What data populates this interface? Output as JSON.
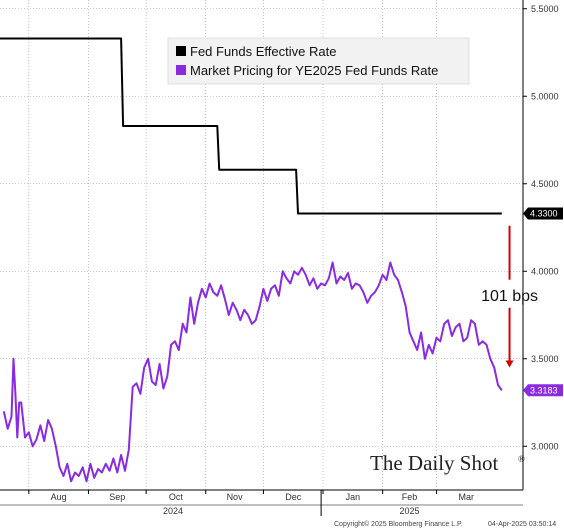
{
  "chart_data": {
    "type": "line",
    "y_axis_side": "right",
    "ylim": [
      2.75,
      5.55
    ],
    "y_ticks": [
      "5.5000",
      "5.0000",
      "4.5000",
      "4.0000",
      "3.5000",
      "3.0000"
    ],
    "y_tick_values": [
      5.5,
      5.0,
      4.5,
      4.0,
      3.5,
      3.0
    ],
    "grid": true,
    "grid_style": "dotted",
    "x_range": [
      "2024-07-17",
      "2025-04-15"
    ],
    "month_ticks": [
      {
        "label": "Aug",
        "date": "2024-08-01"
      },
      {
        "label": "Sep",
        "date": "2024-09-01"
      },
      {
        "label": "Oct",
        "date": "2024-10-01"
      },
      {
        "label": "Nov",
        "date": "2024-11-01"
      },
      {
        "label": "Dec",
        "date": "2024-12-01"
      },
      {
        "label": "Jan",
        "date": "2025-01-01"
      },
      {
        "label": "Feb",
        "date": "2025-02-01"
      },
      {
        "label": "Mar",
        "date": "2025-03-01"
      }
    ],
    "year_labels": [
      {
        "label": "2024",
        "date": "2024-10-15"
      },
      {
        "label": "2025",
        "date": "2025-02-15"
      }
    ],
    "year_separator_date": "2024-12-31",
    "series": [
      {
        "name": "Fed Funds Effective Rate",
        "color": "#000000",
        "last_value_label": "4.3300",
        "x": [
          "2024-07-17",
          "2024-09-18",
          "2024-09-19",
          "2024-11-07",
          "2024-11-08",
          "2024-12-18",
          "2024-12-19",
          "2025-04-04"
        ],
        "y": [
          5.33,
          5.33,
          4.83,
          4.83,
          4.58,
          4.58,
          4.33,
          4.33
        ]
      },
      {
        "name": "Market Pricing for YE2025 Fed Funds Rate",
        "color": "#8a2be2",
        "last_value_label": "3.3183",
        "x": [
          "2024-07-19",
          "2024-07-21",
          "2024-07-23",
          "2024-07-24",
          "2024-07-25",
          "2024-07-26",
          "2024-07-27",
          "2024-07-28",
          "2024-07-30",
          "2024-08-01",
          "2024-08-03",
          "2024-08-05",
          "2024-08-07",
          "2024-08-09",
          "2024-08-11",
          "2024-08-13",
          "2024-08-15",
          "2024-08-17",
          "2024-08-19",
          "2024-08-21",
          "2024-08-23",
          "2024-08-25",
          "2024-08-27",
          "2024-08-29",
          "2024-08-31",
          "2024-09-02",
          "2024-09-04",
          "2024-09-06",
          "2024-09-08",
          "2024-09-10",
          "2024-09-12",
          "2024-09-14",
          "2024-09-16",
          "2024-09-18",
          "2024-09-20",
          "2024-09-22",
          "2024-09-24",
          "2024-09-26",
          "2024-09-28",
          "2024-09-30",
          "2024-10-02",
          "2024-10-04",
          "2024-10-06",
          "2024-10-08",
          "2024-10-10",
          "2024-10-12",
          "2024-10-14",
          "2024-10-16",
          "2024-10-18",
          "2024-10-20",
          "2024-10-22",
          "2024-10-24",
          "2024-10-26",
          "2024-10-28",
          "2024-10-30",
          "2024-11-01",
          "2024-11-03",
          "2024-11-05",
          "2024-11-07",
          "2024-11-09",
          "2024-11-11",
          "2024-11-13",
          "2024-11-15",
          "2024-11-17",
          "2024-11-19",
          "2024-11-21",
          "2024-11-23",
          "2024-11-25",
          "2024-11-27",
          "2024-11-29",
          "2024-12-01",
          "2024-12-03",
          "2024-12-05",
          "2024-12-07",
          "2024-12-09",
          "2024-12-11",
          "2024-12-13",
          "2024-12-15",
          "2024-12-17",
          "2024-12-19",
          "2024-12-21",
          "2024-12-23",
          "2024-12-25",
          "2024-12-27",
          "2024-12-29",
          "2024-12-31",
          "2025-01-02",
          "2025-01-04",
          "2025-01-06",
          "2025-01-08",
          "2025-01-10",
          "2025-01-12",
          "2025-01-14",
          "2025-01-16",
          "2025-01-18",
          "2025-01-20",
          "2025-01-22",
          "2025-01-24",
          "2025-01-26",
          "2025-01-28",
          "2025-01-30",
          "2025-02-01",
          "2025-02-03",
          "2025-02-05",
          "2025-02-07",
          "2025-02-09",
          "2025-02-11",
          "2025-02-13",
          "2025-02-15",
          "2025-02-17",
          "2025-02-19",
          "2025-02-21",
          "2025-02-23",
          "2025-02-25",
          "2025-02-27",
          "2025-03-01",
          "2025-03-03",
          "2025-03-05",
          "2025-03-07",
          "2025-03-09",
          "2025-03-11",
          "2025-03-13",
          "2025-03-15",
          "2025-03-17",
          "2025-03-19",
          "2025-03-21",
          "2025-03-23",
          "2025-03-25",
          "2025-03-27",
          "2025-03-29",
          "2025-03-31",
          "2025-04-02",
          "2025-04-04"
        ],
        "y": [
          3.2,
          3.1,
          3.17,
          3.5,
          3.3,
          3.05,
          3.25,
          3.25,
          3.05,
          3.08,
          3.0,
          3.04,
          3.12,
          3.03,
          3.15,
          3.1,
          3.0,
          2.88,
          2.83,
          2.9,
          2.8,
          2.85,
          2.83,
          2.88,
          2.8,
          2.9,
          2.82,
          2.87,
          2.85,
          2.9,
          2.86,
          2.93,
          2.85,
          2.95,
          2.86,
          2.98,
          3.34,
          3.36,
          3.3,
          3.45,
          3.5,
          3.37,
          3.35,
          3.47,
          3.33,
          3.4,
          3.58,
          3.6,
          3.55,
          3.7,
          3.65,
          3.85,
          3.7,
          3.82,
          3.9,
          3.85,
          3.93,
          3.88,
          3.86,
          3.92,
          3.84,
          3.75,
          3.82,
          3.78,
          3.72,
          3.78,
          3.75,
          3.7,
          3.72,
          3.8,
          3.9,
          3.83,
          3.9,
          3.92,
          3.86,
          4.0,
          3.96,
          3.93,
          4.0,
          3.98,
          4.02,
          3.98,
          3.92,
          3.96,
          3.9,
          3.93,
          3.92,
          3.96,
          4.05,
          3.93,
          3.97,
          3.95,
          3.99,
          3.9,
          3.93,
          3.92,
          3.88,
          3.82,
          3.86,
          3.88,
          3.92,
          3.98,
          3.95,
          4.05,
          3.98,
          3.95,
          3.88,
          3.8,
          3.65,
          3.6,
          3.55,
          3.65,
          3.5,
          3.58,
          3.53,
          3.62,
          3.6,
          3.7,
          3.72,
          3.63,
          3.68,
          3.7,
          3.6,
          3.62,
          3.72,
          3.7,
          3.58,
          3.6,
          3.58,
          3.5,
          3.45,
          3.35,
          3.32
        ]
      }
    ],
    "legend": {
      "placement": "top-center",
      "entries": [
        {
          "label": "Fed Funds Effective Rate",
          "color": "#000000"
        },
        {
          "label": "Market Pricing for YE2025 Fed Funds Rate",
          "color": "#8a2be2"
        }
      ]
    },
    "annotation": {
      "text": "101 bps",
      "color": "#111111",
      "arrow_color": "#d40000",
      "arrow_from": 4.26,
      "arrow_to": 3.45,
      "gap_text_value": 3.86,
      "date": "2025-04-08"
    }
  },
  "watermark": {
    "text": "The Daily Shot",
    "mark": "®"
  },
  "footer": {
    "copyright": "Copyright© 2025 Bloomberg Finance L.P.",
    "timestamp": "04-Apr-2025 03:50:14"
  }
}
